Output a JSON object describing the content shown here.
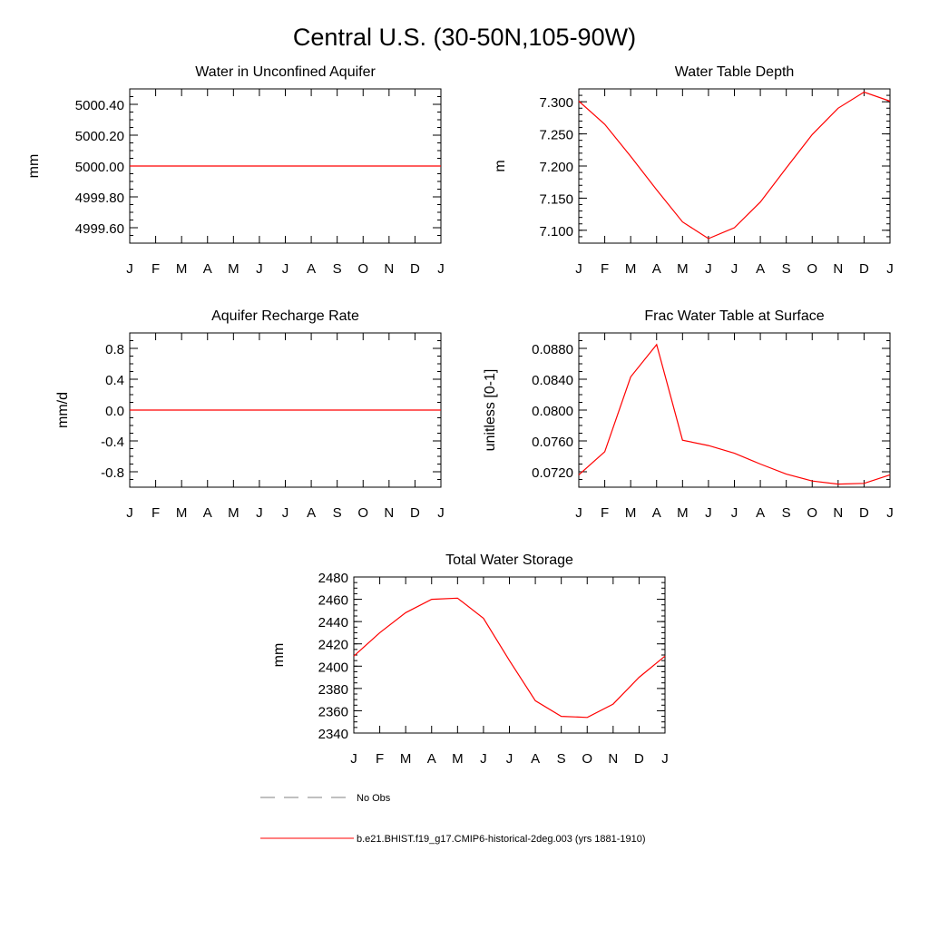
{
  "page_title": "Central U.S. (30-50N,105-90W)",
  "months": [
    "J",
    "F",
    "M",
    "A",
    "M",
    "J",
    "J",
    "A",
    "S",
    "O",
    "N",
    "D",
    "J"
  ],
  "line_color": "#ff0000",
  "obs_color": "#808080",
  "legend": {
    "obs_label": "No Obs",
    "model_label": "b.e21.BHIST.f19_g17.CMIP6-historical-2deg.003 (yrs 1881-1910)"
  },
  "chart_data": [
    {
      "id": "unconfined-aquifer",
      "type": "line",
      "title": "Water in Unconfined Aquifer",
      "ylabel": "mm",
      "ylim": [
        4999.5,
        5000.5
      ],
      "yticks": [
        "5000.40",
        "5000.20",
        "5000.00",
        "4999.80",
        "4999.60"
      ],
      "ytick_values": [
        5000.4,
        5000.2,
        5000.0,
        4999.8,
        4999.6
      ],
      "yminor_step": 0.05,
      "x": [
        "J",
        "F",
        "M",
        "A",
        "M",
        "J",
        "J",
        "A",
        "S",
        "O",
        "N",
        "D",
        "J"
      ],
      "series": [
        {
          "values": [
            5000,
            5000,
            5000,
            5000,
            5000,
            5000,
            5000,
            5000,
            5000,
            5000,
            5000,
            5000,
            5000
          ]
        }
      ]
    },
    {
      "id": "water-table-depth",
      "type": "line",
      "title": "Water Table Depth",
      "ylabel": "m",
      "ylim": [
        7.08,
        7.32
      ],
      "yticks": [
        "7.300",
        "7.250",
        "7.200",
        "7.150",
        "7.100"
      ],
      "ytick_values": [
        7.3,
        7.25,
        7.2,
        7.15,
        7.1
      ],
      "yminor_step": 0.01,
      "x": [
        "J",
        "F",
        "M",
        "A",
        "M",
        "J",
        "J",
        "A",
        "S",
        "O",
        "N",
        "D",
        "J"
      ],
      "series": [
        {
          "values": [
            7.301,
            7.265,
            7.215,
            7.163,
            7.113,
            7.087,
            7.104,
            7.144,
            7.197,
            7.249,
            7.29,
            7.315,
            7.301
          ]
        }
      ]
    },
    {
      "id": "recharge-rate",
      "type": "line",
      "title": "Aquifer Recharge Rate",
      "ylabel": "mm/d",
      "ylim": [
        -1.0,
        1.0
      ],
      "yticks": [
        "0.8",
        "0.4",
        "0.0",
        "-0.4",
        "-0.8"
      ],
      "ytick_values": [
        0.8,
        0.4,
        0.0,
        -0.4,
        -0.8
      ],
      "yminor_step": 0.1,
      "x": [
        "J",
        "F",
        "M",
        "A",
        "M",
        "J",
        "J",
        "A",
        "S",
        "O",
        "N",
        "D",
        "J"
      ],
      "series": [
        {
          "values": [
            0,
            0,
            0,
            0,
            0,
            0,
            0,
            0,
            0,
            0,
            0,
            0,
            0
          ]
        }
      ]
    },
    {
      "id": "frac-water-table",
      "type": "line",
      "title": "Frac Water Table at Surface",
      "ylabel": "unitless [0-1]",
      "ylim": [
        0.07,
        0.09
      ],
      "yticks": [
        "0.0880",
        "0.0840",
        "0.0800",
        "0.0760",
        "0.0720"
      ],
      "ytick_values": [
        0.088,
        0.084,
        0.08,
        0.076,
        0.072
      ],
      "yminor_step": 0.001,
      "x": [
        "J",
        "F",
        "M",
        "A",
        "M",
        "J",
        "J",
        "A",
        "S",
        "O",
        "N",
        "D",
        "J"
      ],
      "series": [
        {
          "values": [
            0.0716,
            0.0746,
            0.0843,
            0.0885,
            0.0761,
            0.0754,
            0.0744,
            0.073,
            0.0717,
            0.0708,
            0.0704,
            0.0705,
            0.0716
          ]
        }
      ]
    },
    {
      "id": "total-water-storage",
      "type": "line",
      "title": "Total Water Storage",
      "ylabel": "mm",
      "ylim": [
        2340,
        2480
      ],
      "yticks": [
        "2480",
        "2460",
        "2440",
        "2420",
        "2400",
        "2380",
        "2360",
        "2340"
      ],
      "ytick_values": [
        2480,
        2460,
        2440,
        2420,
        2400,
        2380,
        2360,
        2340
      ],
      "yminor_step": 5,
      "x": [
        "J",
        "F",
        "M",
        "A",
        "M",
        "J",
        "J",
        "A",
        "S",
        "O",
        "N",
        "D",
        "J"
      ],
      "series": [
        {
          "values": [
            2409,
            2430,
            2448,
            2460,
            2461,
            2443,
            2405,
            2369,
            2355,
            2354,
            2366,
            2390,
            2409
          ]
        }
      ]
    }
  ]
}
